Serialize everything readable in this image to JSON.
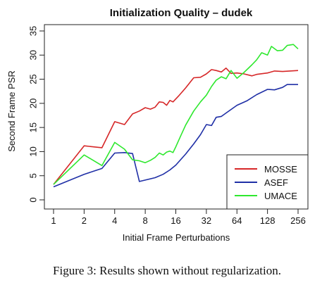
{
  "chart_data": {
    "type": "line",
    "title": "Initialization Quality – dudek",
    "xlabel": "Initial Frame Perturbations",
    "ylabel": "Second Frame PSR",
    "x_scale": "log2",
    "xlim": [
      1,
      256
    ],
    "ylim": [
      0,
      35
    ],
    "x_ticks": [
      "1",
      "2",
      "4",
      "8",
      "16",
      "32",
      "64",
      "128",
      "256"
    ],
    "y_ticks": [
      "0",
      "5",
      "10",
      "15",
      "20",
      "25",
      "30",
      "35"
    ],
    "legend_position": "bottom-right",
    "series": [
      {
        "name": "MOSSE",
        "color": "#d62728",
        "points": [
          [
            1,
            3.2
          ],
          [
            2,
            11.2
          ],
          [
            3,
            10.8
          ],
          [
            4,
            16.2
          ],
          [
            5,
            15.6
          ],
          [
            6,
            17.8
          ],
          [
            7,
            18.4
          ],
          [
            8,
            19.1
          ],
          [
            9,
            18.8
          ],
          [
            10,
            19.2
          ],
          [
            11,
            20.3
          ],
          [
            12,
            20.2
          ],
          [
            13,
            19.6
          ],
          [
            14,
            20.6
          ],
          [
            15,
            20.3
          ],
          [
            17,
            21.5
          ],
          [
            20,
            23.2
          ],
          [
            24,
            25.3
          ],
          [
            28,
            25.4
          ],
          [
            32,
            26.1
          ],
          [
            36,
            27.0
          ],
          [
            40,
            26.8
          ],
          [
            45,
            26.5
          ],
          [
            50,
            27.3
          ],
          [
            56,
            26.2
          ],
          [
            64,
            26.3
          ],
          [
            75,
            26.1
          ],
          [
            90,
            25.7
          ],
          [
            100,
            26.0
          ],
          [
            128,
            26.3
          ],
          [
            150,
            26.7
          ],
          [
            180,
            26.6
          ],
          [
            256,
            26.8
          ]
        ]
      },
      {
        "name": "ASEF",
        "color": "#1f2fa6",
        "points": [
          [
            1,
            2.7
          ],
          [
            2,
            5.3
          ],
          [
            3,
            6.5
          ],
          [
            4,
            9.7
          ],
          [
            5,
            9.8
          ],
          [
            6,
            9.6
          ],
          [
            7,
            3.8
          ],
          [
            8,
            4.1
          ],
          [
            10,
            4.6
          ],
          [
            12,
            5.3
          ],
          [
            14,
            6.2
          ],
          [
            16,
            7.2
          ],
          [
            20,
            9.5
          ],
          [
            24,
            11.6
          ],
          [
            28,
            13.5
          ],
          [
            32,
            15.6
          ],
          [
            36,
            15.4
          ],
          [
            40,
            17.1
          ],
          [
            45,
            17.3
          ],
          [
            50,
            18.0
          ],
          [
            64,
            19.6
          ],
          [
            80,
            20.5
          ],
          [
            100,
            21.8
          ],
          [
            128,
            22.9
          ],
          [
            150,
            22.8
          ],
          [
            180,
            23.3
          ],
          [
            200,
            23.9
          ],
          [
            256,
            23.9
          ]
        ]
      },
      {
        "name": "UMACE",
        "color": "#2ee82e",
        "points": [
          [
            1,
            3.2
          ],
          [
            2,
            9.3
          ],
          [
            3,
            7.1
          ],
          [
            4,
            11.9
          ],
          [
            5,
            10.5
          ],
          [
            6,
            8.3
          ],
          [
            7,
            8.1
          ],
          [
            8,
            7.7
          ],
          [
            9,
            8.2
          ],
          [
            10,
            8.8
          ],
          [
            11,
            9.7
          ],
          [
            12,
            9.3
          ],
          [
            13,
            9.9
          ],
          [
            14,
            10.1
          ],
          [
            15,
            9.8
          ],
          [
            16,
            11.0
          ],
          [
            18,
            13.4
          ],
          [
            20,
            15.5
          ],
          [
            24,
            18.4
          ],
          [
            28,
            20.3
          ],
          [
            32,
            21.7
          ],
          [
            36,
            23.5
          ],
          [
            40,
            24.8
          ],
          [
            45,
            25.5
          ],
          [
            50,
            25.1
          ],
          [
            56,
            26.8
          ],
          [
            64,
            25.2
          ],
          [
            75,
            26.4
          ],
          [
            90,
            28.0
          ],
          [
            100,
            29.0
          ],
          [
            112,
            30.5
          ],
          [
            128,
            30.0
          ],
          [
            140,
            31.8
          ],
          [
            160,
            30.9
          ],
          [
            180,
            31.0
          ],
          [
            200,
            32.0
          ],
          [
            230,
            32.2
          ],
          [
            256,
            31.3
          ]
        ]
      }
    ]
  },
  "caption": "Figure 3: Results shown without regularization."
}
